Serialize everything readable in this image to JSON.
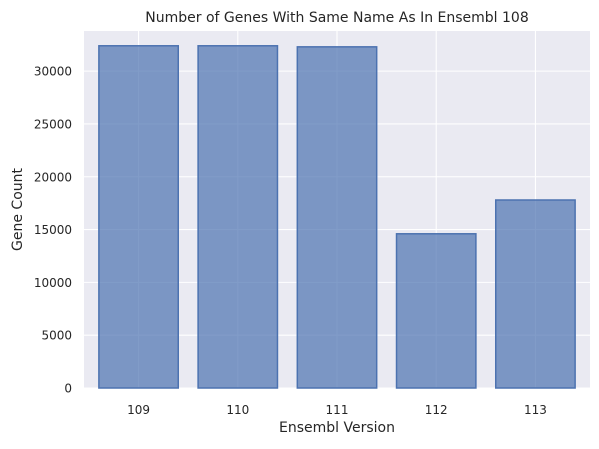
{
  "chart_data": {
    "type": "bar",
    "title": "Number of Genes With Same Name As In Ensembl 108",
    "xlabel": "Ensembl Version",
    "ylabel": "Gene Count",
    "categories": [
      "109",
      "110",
      "111",
      "112",
      "113"
    ],
    "values": [
      32400,
      32400,
      32300,
      14600,
      17800
    ],
    "ylim": [
      0,
      33800
    ],
    "yticks": [
      0,
      5000,
      10000,
      15000,
      20000,
      25000,
      30000
    ],
    "grid": true,
    "legend": "none",
    "colors": {
      "bar_fill": "#4C72B0",
      "bar_fill_opacity": 0.7,
      "bar_edge": "#4C72B0",
      "plot_background": "#EAEAF2",
      "grid": "#FFFFFF"
    }
  }
}
